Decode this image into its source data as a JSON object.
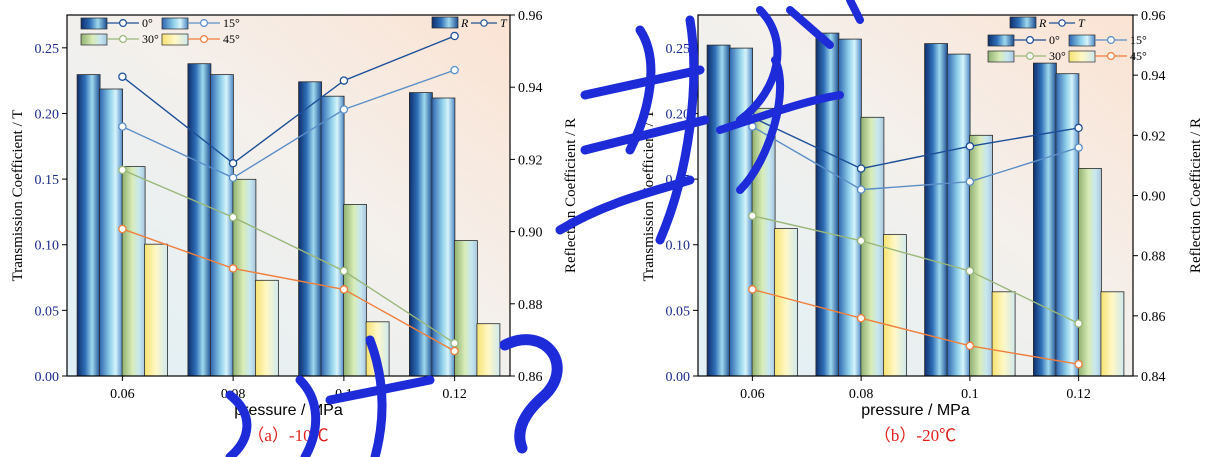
{
  "chart_data": [
    {
      "type": "bar",
      "caption": "（a）-10℃",
      "xlabel": "pressure / MPa",
      "ylabel_left": "Transmission Coefficient / T",
      "ylabel_right": "Reflection Coefficient / R",
      "categories": [
        "0.06",
        "0.08",
        "0.1",
        "0.12"
      ],
      "ylim_left": [
        0,
        0.275
      ],
      "yticks_left": [
        "0.00",
        "0.05",
        "0.10",
        "0.15",
        "0.20",
        "0.25"
      ],
      "ylim_right": [
        0.86,
        0.96
      ],
      "yticks_right": [
        "0.86",
        "0.88",
        "0.90",
        "0.92",
        "0.94",
        "0.96"
      ],
      "legend_top": [
        "R",
        "T"
      ],
      "series": [
        {
          "name": "0°",
          "color": "#1d4f97",
          "bar_values_R": [
            0.9435,
            0.9465,
            0.9415,
            0.9385
          ],
          "line_values_T": [
            0.228,
            0.162,
            0.225,
            0.259
          ]
        },
        {
          "name": "15°",
          "color": "#5b8ec7",
          "bar_values_R": [
            0.9395,
            0.9435,
            0.9375,
            0.937
          ],
          "line_values_T": [
            0.19,
            0.151,
            0.203,
            0.233
          ]
        },
        {
          "name": "30°",
          "color": "#9ab77a",
          "bar_values_R": [
            0.918,
            0.9145,
            0.9075,
            0.8975
          ],
          "line_values_T": [
            0.157,
            0.121,
            0.08,
            0.025
          ]
        },
        {
          "name": "45°",
          "color": "#f07e3c",
          "bar_values_R": [
            0.8965,
            0.8865,
            0.875,
            0.8745
          ],
          "line_values_T": [
            0.112,
            0.082,
            0.066,
            0.019
          ]
        }
      ]
    },
    {
      "type": "bar",
      "caption": "（b）-20℃",
      "xlabel": "pressure / MPa",
      "ylabel_left": "Transmission Coefficient / T",
      "ylabel_right": "Reflection Coefficient / R",
      "categories": [
        "0.06",
        "0.08",
        "0.1",
        "0.12"
      ],
      "ylim_left": [
        0,
        0.275
      ],
      "yticks_left": [
        "0.00",
        "0.05",
        "0.10",
        "0.15",
        "0.20",
        "0.25"
      ],
      "ylim_right": [
        0.84,
        0.96
      ],
      "yticks_right": [
        "0.84",
        "0.86",
        "0.88",
        "0.90",
        "0.92",
        "0.94",
        "0.96"
      ],
      "legend_top": [
        "R",
        "T"
      ],
      "series": [
        {
          "name": "0°",
          "color": "#1d4f97",
          "bar_values_R": [
            0.95,
            0.954,
            0.9505,
            0.944
          ],
          "line_values_T": [
            0.197,
            0.158,
            0.175,
            0.189
          ]
        },
        {
          "name": "15°",
          "color": "#5b8ec7",
          "bar_values_R": [
            0.949,
            0.952,
            0.947,
            0.9405
          ],
          "line_values_T": [
            0.19,
            0.142,
            0.148,
            0.174
          ]
        },
        {
          "name": "30°",
          "color": "#9ab77a",
          "bar_values_R": [
            0.929,
            0.926,
            0.92,
            0.909
          ],
          "line_values_T": [
            0.122,
            0.103,
            0.08,
            0.04
          ]
        },
        {
          "name": "45°",
          "color": "#f07e3c",
          "bar_values_R": [
            0.889,
            0.887,
            0.868,
            0.868
          ],
          "line_values_T": [
            0.066,
            0.044,
            0.023,
            0.009
          ]
        }
      ]
    }
  ],
  "watermark": [
    "非",
    "景",
    "件",
    "?"
  ]
}
